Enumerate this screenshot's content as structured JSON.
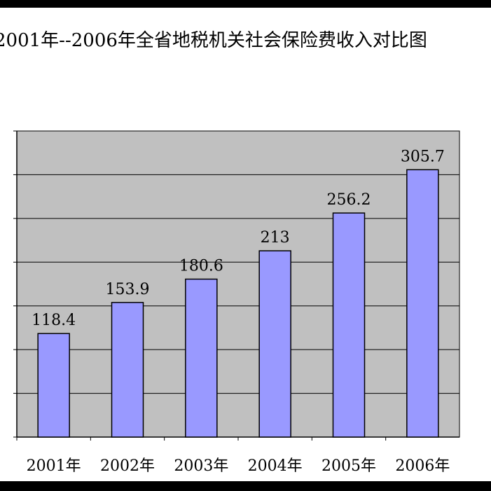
{
  "chart_data": {
    "type": "bar",
    "title": "2001年--2006年全省地税机关社会保险费收入对比图",
    "categories": [
      "2001年",
      "2002年",
      "2003年",
      "2004年",
      "2005年",
      "2006年"
    ],
    "values": [
      118.4,
      153.9,
      180.6,
      213,
      256.2,
      305.7
    ],
    "value_labels": [
      "118.4",
      "153.9",
      "180.6",
      "213",
      "256.2",
      "305.7"
    ],
    "xlabel": "",
    "ylabel": "",
    "ylim": [
      0,
      350
    ],
    "grid": true,
    "legend": "none",
    "colors": {
      "bar_fill": "#9999ff",
      "bar_stroke": "#000000",
      "plot_background": "#c0c0c0",
      "grid": "#000000"
    }
  }
}
